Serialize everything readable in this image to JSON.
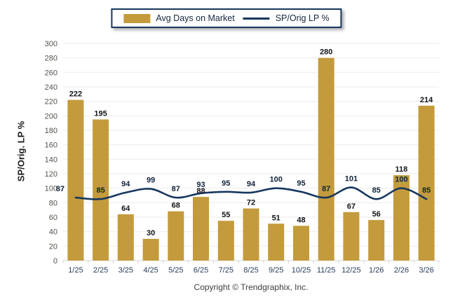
{
  "chart_data": {
    "type": "bar+line",
    "title": "",
    "categories": [
      "1/25",
      "2/25",
      "3/25",
      "4/25",
      "5/25",
      "6/25",
      "7/25",
      "8/25",
      "9/25",
      "10/25",
      "11/25",
      "12/25",
      "1/26",
      "2/26",
      "3/26"
    ],
    "series": [
      {
        "name": "Avg Days on Market",
        "type": "bar",
        "color": "#C49B3C",
        "values": [
          222,
          195,
          64,
          30,
          68,
          88,
          55,
          72,
          51,
          48,
          280,
          67,
          56,
          118,
          214
        ]
      },
      {
        "name": "SP/Orig LP %",
        "type": "line",
        "color": "#17375E",
        "values": [
          87,
          85,
          94,
          99,
          87,
          93,
          95,
          94,
          100,
          95,
          87,
          101,
          85,
          100,
          85
        ]
      }
    ],
    "ylabel": "SP/Orig. LP %",
    "xlabel": "",
    "ylim": [
      0,
      300
    ],
    "ytick_step": 20,
    "grid": true,
    "grid_color": "#EBEBEB",
    "axis_color": "#D6D6D6",
    "legend_position": "top-center",
    "legend_border_color": "#17375E"
  },
  "footer": {
    "copyright": "Copyright © Trendgraphix, Inc."
  }
}
